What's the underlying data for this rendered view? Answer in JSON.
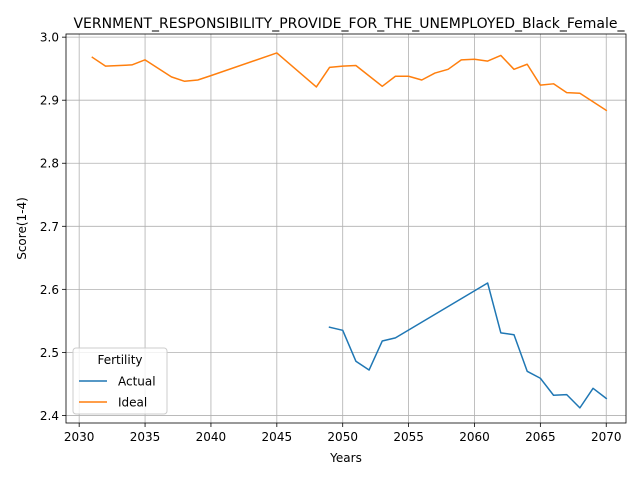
{
  "chart_data": {
    "type": "line",
    "title": "VERNMENT_RESPONSIBILITY_PROVIDE_FOR_THE_UNEMPLOYED_Black_Female_",
    "xlabel": "Years",
    "ylabel": "Score(1-4)",
    "xlim": [
      2029,
      2071.5
    ],
    "ylim": [
      2.388,
      3.005
    ],
    "xticks": [
      2030,
      2035,
      2040,
      2045,
      2050,
      2055,
      2060,
      2065,
      2070
    ],
    "yticks": [
      2.4,
      2.5,
      2.6,
      2.7,
      2.8,
      2.9,
      3.0
    ],
    "grid": true,
    "legend": {
      "title": "Fertility",
      "placement": "lower-left"
    },
    "series": [
      {
        "name": "Actual",
        "color": "#1f77b4",
        "points": [
          [
            2049,
            2.54
          ],
          [
            2050,
            2.535
          ],
          [
            2051,
            2.486
          ],
          [
            2052,
            2.472
          ],
          [
            2053,
            2.518
          ],
          [
            2054,
            2.523
          ],
          [
            2061,
            2.61
          ],
          [
            2062,
            2.531
          ],
          [
            2063,
            2.528
          ],
          [
            2064,
            2.47
          ],
          [
            2065,
            2.459
          ],
          [
            2066,
            2.432
          ],
          [
            2067,
            2.433
          ],
          [
            2068,
            2.412
          ],
          [
            2069,
            2.443
          ],
          [
            2070,
            2.427
          ]
        ]
      },
      {
        "name": "Ideal",
        "color": "#ff7f0e",
        "points": [
          [
            2031,
            2.968
          ],
          [
            2032,
            2.954
          ],
          [
            2034,
            2.956
          ],
          [
            2035,
            2.964
          ],
          [
            2037,
            2.937
          ],
          [
            2038,
            2.93
          ],
          [
            2039,
            2.932
          ],
          [
            2040,
            2.939
          ],
          [
            2045,
            2.975
          ],
          [
            2048,
            2.921
          ],
          [
            2049,
            2.952
          ],
          [
            2050,
            2.954
          ],
          [
            2051,
            2.955
          ],
          [
            2053,
            2.922
          ],
          [
            2054,
            2.938
          ],
          [
            2055,
            2.938
          ],
          [
            2056,
            2.932
          ],
          [
            2057,
            2.943
          ],
          [
            2058,
            2.949
          ],
          [
            2059,
            2.964
          ],
          [
            2060,
            2.965
          ],
          [
            2061,
            2.962
          ],
          [
            2062,
            2.971
          ],
          [
            2063,
            2.949
          ],
          [
            2064,
            2.957
          ],
          [
            2065,
            2.924
          ],
          [
            2066,
            2.926
          ],
          [
            2067,
            2.912
          ],
          [
            2068,
            2.911
          ],
          [
            2070,
            2.884
          ]
        ]
      }
    ]
  }
}
